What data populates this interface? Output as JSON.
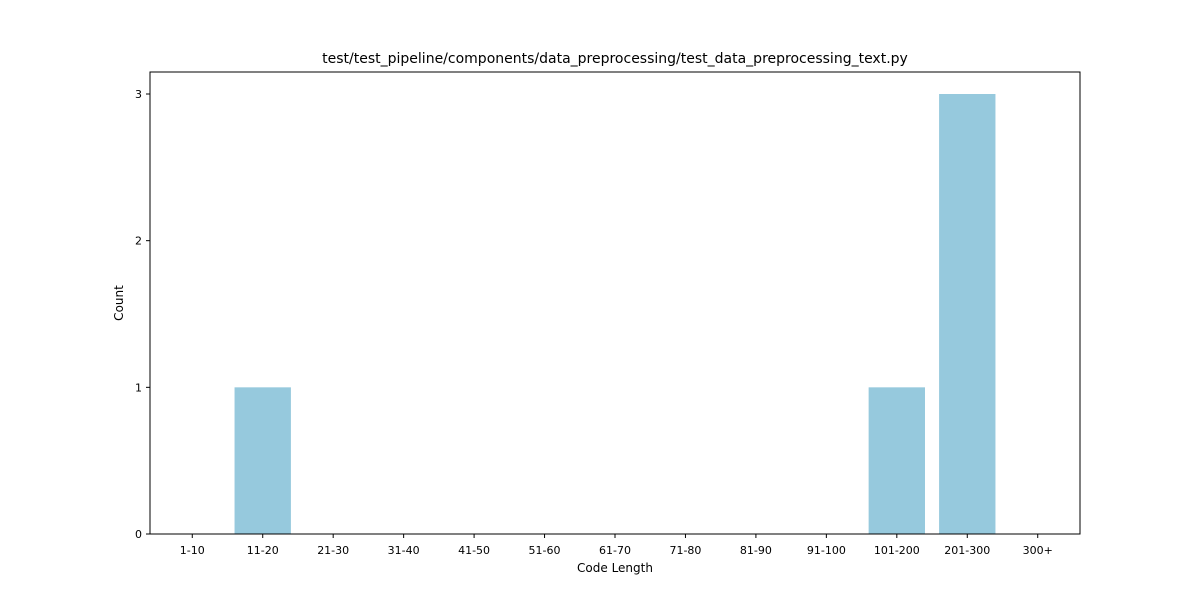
{
  "chart_data": {
    "type": "bar",
    "title": "test/test_pipeline/components/data_preprocessing/test_data_preprocessing_text.py",
    "xlabel": "Code Length",
    "ylabel": "Count",
    "categories": [
      "1-10",
      "11-20",
      "21-30",
      "31-40",
      "41-50",
      "51-60",
      "61-70",
      "71-80",
      "81-90",
      "91-100",
      "101-200",
      "201-300",
      "300+"
    ],
    "values": [
      0,
      1,
      0,
      0,
      0,
      0,
      0,
      0,
      0,
      0,
      1,
      3,
      0
    ],
    "yticks": [
      "0",
      "1",
      "2",
      "3"
    ],
    "ylim": [
      0,
      3.15
    ],
    "bar_color": "#96c9dd",
    "grid": false,
    "legend": false
  }
}
